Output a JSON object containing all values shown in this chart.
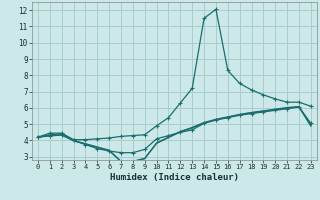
{
  "xlabel": "Humidex (Indice chaleur)",
  "bg_color": "#cce8e8",
  "grid_color": "#aacccc",
  "line_color": "#1a6e6e",
  "xlim": [
    -0.5,
    23.5
  ],
  "ylim": [
    2.8,
    12.5
  ],
  "xticks": [
    0,
    1,
    2,
    3,
    4,
    5,
    6,
    7,
    8,
    9,
    10,
    11,
    12,
    13,
    14,
    15,
    16,
    17,
    18,
    19,
    20,
    21,
    22,
    23
  ],
  "yticks": [
    3,
    4,
    5,
    6,
    7,
    8,
    9,
    10,
    11,
    12
  ],
  "curve1_x": [
    0,
    1,
    2,
    3,
    4,
    5,
    6,
    7,
    8,
    9,
    10,
    11,
    12,
    13,
    14,
    15,
    16,
    17,
    18,
    19,
    20,
    21,
    22,
    23
  ],
  "curve1_y": [
    4.2,
    4.45,
    4.45,
    4.05,
    4.05,
    4.1,
    4.15,
    4.25,
    4.3,
    4.35,
    4.9,
    5.4,
    6.3,
    7.2,
    11.5,
    12.05,
    8.3,
    7.5,
    7.1,
    6.8,
    6.55,
    6.35,
    6.35,
    6.1
  ],
  "curve2_x": [
    0,
    1,
    2,
    3,
    4,
    5,
    6,
    7,
    8,
    9,
    10,
    11,
    12,
    13,
    14,
    15,
    16,
    17,
    18,
    19,
    20,
    21,
    22,
    23
  ],
  "curve2_y": [
    4.2,
    4.3,
    4.35,
    4.0,
    3.75,
    3.5,
    3.35,
    3.25,
    3.25,
    3.45,
    4.1,
    4.3,
    4.5,
    4.65,
    5.05,
    5.25,
    5.4,
    5.55,
    5.65,
    5.75,
    5.85,
    5.95,
    6.05,
    5.05
  ],
  "curve3_x": [
    0,
    1,
    2,
    3,
    4,
    5,
    6,
    7,
    8,
    9,
    10,
    11,
    12,
    13,
    14,
    15,
    16,
    17,
    18,
    19,
    20,
    21,
    22,
    23
  ],
  "curve3_y": [
    4.2,
    4.35,
    4.4,
    4.0,
    3.8,
    3.6,
    3.4,
    2.72,
    2.72,
    2.9,
    3.85,
    4.2,
    4.55,
    4.8,
    5.1,
    5.3,
    5.45,
    5.6,
    5.72,
    5.82,
    5.92,
    6.02,
    6.08,
    4.92
  ],
  "curve4_x": [
    0,
    1,
    2,
    3,
    4,
    5,
    6,
    7,
    8,
    9,
    10,
    11,
    12,
    13,
    14,
    15,
    16,
    17,
    18,
    19,
    20,
    21,
    22,
    23
  ],
  "curve4_y": [
    4.2,
    4.28,
    4.33,
    3.98,
    3.78,
    3.58,
    3.38,
    2.7,
    2.7,
    2.88,
    3.82,
    4.18,
    4.52,
    4.77,
    5.07,
    5.27,
    5.42,
    5.57,
    5.69,
    5.79,
    5.89,
    5.99,
    6.05,
    4.88
  ]
}
